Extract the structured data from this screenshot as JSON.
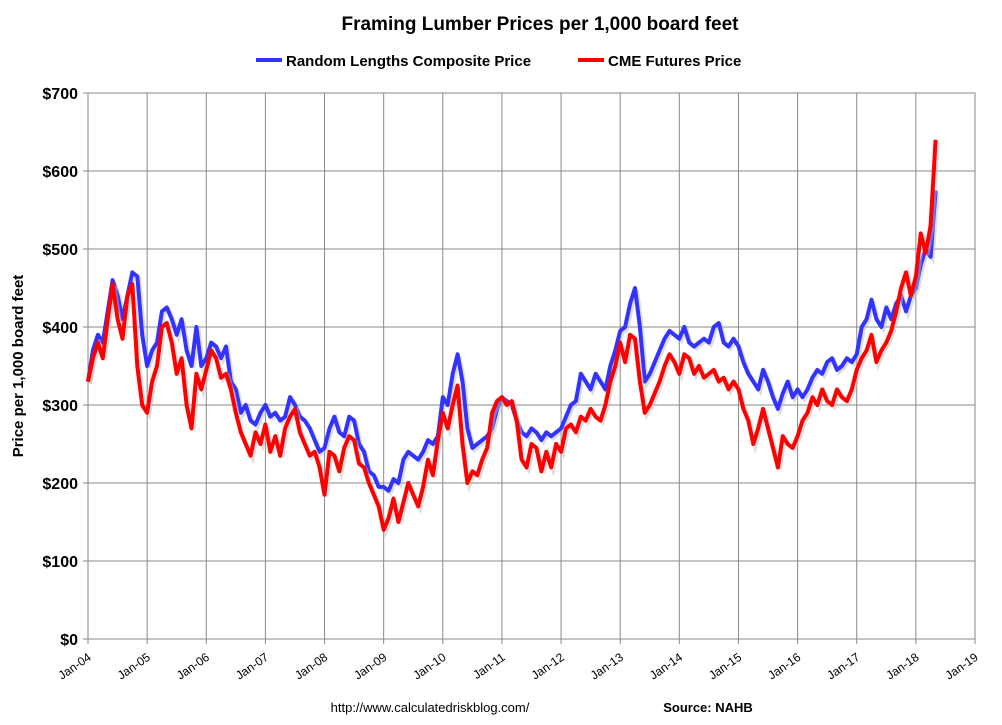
{
  "chart_data": {
    "type": "line",
    "title": "Framing Lumber Prices per 1,000 board feet",
    "ylabel": "Price per 1,000 board feet",
    "xlabel": "",
    "ylim": [
      0,
      700
    ],
    "xlim": [
      "2004-01",
      "2019-01"
    ],
    "yticks": [
      "$0",
      "$100",
      "$200",
      "$300",
      "$400",
      "$500",
      "$600",
      "$700"
    ],
    "xticks": [
      "Jan-04",
      "Jan-05",
      "Jan-06",
      "Jan-07",
      "Jan-08",
      "Jan-09",
      "Jan-10",
      "Jan-11",
      "Jan-12",
      "Jan-13",
      "Jan-14",
      "Jan-15",
      "Jan-16",
      "Jan-17",
      "Jan-18",
      "Jan-19"
    ],
    "grid": true,
    "legend_position": "top",
    "x_frequency": "monthly",
    "series": [
      {
        "name": "Random Lengths Composite Price",
        "color": "#3333ff",
        "values_by_year": {
          "2004": [
            330,
            370,
            390,
            380,
            420,
            460,
            440,
            410,
            440,
            470,
            465,
            390
          ],
          "2005": [
            350,
            370,
            380,
            420,
            425,
            410,
            390,
            410,
            370,
            350,
            400,
            350
          ],
          "2006": [
            360,
            380,
            375,
            360,
            375,
            330,
            320,
            290,
            300,
            280,
            275,
            290
          ],
          "2007": [
            300,
            285,
            290,
            280,
            285,
            310,
            300,
            285,
            280,
            270,
            255,
            240
          ],
          "2008": [
            245,
            270,
            285,
            265,
            260,
            285,
            280,
            250,
            240,
            215,
            210,
            195
          ],
          "2009": [
            195,
            190,
            205,
            200,
            230,
            240,
            235,
            230,
            240,
            255,
            250,
            260
          ],
          "2010": [
            310,
            300,
            340,
            365,
            330,
            270,
            245,
            250,
            255,
            260,
            270,
            295
          ],
          "2011": [
            310,
            305,
            300,
            280,
            265,
            260,
            270,
            265,
            255,
            265,
            260,
            265
          ],
          "2012": [
            270,
            285,
            300,
            305,
            340,
            330,
            320,
            340,
            330,
            320,
            350,
            370
          ],
          "2013": [
            395,
            400,
            430,
            450,
            400,
            330,
            340,
            355,
            370,
            385,
            395,
            390
          ],
          "2014": [
            385,
            400,
            380,
            375,
            380,
            385,
            380,
            400,
            405,
            380,
            375,
            385
          ],
          "2015": [
            375,
            355,
            340,
            330,
            320,
            345,
            330,
            310,
            295,
            315,
            330,
            310
          ],
          "2016": [
            320,
            310,
            320,
            335,
            345,
            340,
            355,
            360,
            345,
            350,
            360,
            355
          ],
          "2017": [
            365,
            400,
            410,
            435,
            410,
            400,
            425,
            410,
            430,
            440,
            420,
            440
          ],
          "2018": [
            450,
            480,
            500,
            490,
            575
          ]
        }
      },
      {
        "name": "CME Futures Price",
        "color": "#ff0000",
        "values_by_year": {
          "2004": [
            330,
            360,
            380,
            360,
            410,
            455,
            410,
            385,
            440,
            455,
            350,
            300
          ],
          "2005": [
            290,
            330,
            350,
            400,
            405,
            380,
            340,
            360,
            300,
            270,
            340,
            320
          ],
          "2006": [
            345,
            370,
            360,
            335,
            340,
            320,
            290,
            265,
            250,
            235,
            265,
            250
          ],
          "2007": [
            275,
            240,
            260,
            235,
            270,
            285,
            295,
            265,
            250,
            235,
            240,
            220
          ],
          "2008": [
            185,
            240,
            235,
            215,
            245,
            260,
            255,
            225,
            220,
            200,
            185,
            170
          ],
          "2009": [
            140,
            155,
            180,
            150,
            175,
            200,
            185,
            170,
            195,
            230,
            210,
            255
          ],
          "2010": [
            290,
            270,
            300,
            325,
            250,
            200,
            215,
            210,
            230,
            245,
            290,
            305
          ],
          "2011": [
            310,
            300,
            305,
            280,
            230,
            220,
            250,
            245,
            215,
            240,
            220,
            250
          ],
          "2012": [
            240,
            270,
            275,
            265,
            285,
            280,
            295,
            285,
            280,
            300,
            330,
            350
          ],
          "2013": [
            380,
            355,
            390,
            385,
            330,
            290,
            300,
            315,
            330,
            350,
            365,
            355
          ],
          "2014": [
            340,
            365,
            360,
            340,
            350,
            335,
            340,
            345,
            330,
            335,
            320,
            330
          ],
          "2015": [
            320,
            295,
            280,
            250,
            270,
            295,
            270,
            245,
            220,
            260,
            250,
            245
          ],
          "2016": [
            260,
            280,
            290,
            310,
            300,
            320,
            305,
            300,
            320,
            310,
            305,
            320
          ],
          "2017": [
            345,
            360,
            370,
            390,
            355,
            370,
            380,
            395,
            420,
            450,
            470,
            440
          ],
          "2018": [
            465,
            520,
            495,
            530,
            640
          ]
        }
      }
    ]
  },
  "footer": {
    "url": "http://www.calculatedriskblog.com/",
    "source": "Source: NAHB"
  }
}
